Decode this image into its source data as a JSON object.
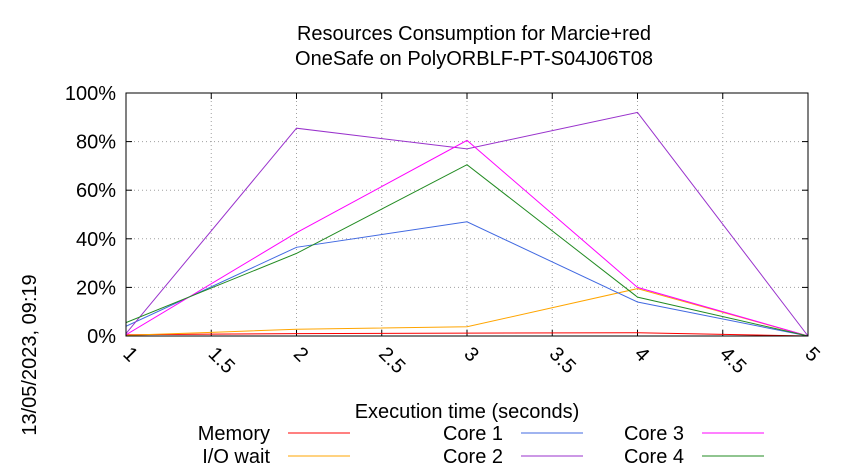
{
  "chart_data": {
    "type": "line",
    "title_line1": "Resources Consumption for Marcie+red",
    "title_line2": "OneSafe on PolyORBLF-PT-S04J06T08",
    "xlabel": "Execution time (seconds)",
    "ylabel": "",
    "side_label": "13/05/2023, 09:19",
    "xlim": [
      1,
      5
    ],
    "ylim": [
      0,
      100
    ],
    "x_ticks": [
      1,
      1.5,
      2,
      2.5,
      3,
      3.5,
      4,
      4.5,
      5
    ],
    "x_tick_labels": [
      "1",
      "1.5",
      "2",
      "2.5",
      "3",
      "3.5",
      "4",
      "4.5",
      "5"
    ],
    "y_ticks": [
      0,
      20,
      40,
      60,
      80,
      100
    ],
    "y_tick_labels": [
      "0%",
      "20%",
      "40%",
      "60%",
      "80%",
      "100%"
    ],
    "grid": true,
    "legend_position": "bottom",
    "series": [
      {
        "name": "Memory",
        "color": "#ff0000",
        "x": [
          1,
          1.5,
          2,
          3,
          4,
          5
        ],
        "y": [
          0.5,
          0.8,
          1,
          1.2,
          1.3,
          0
        ]
      },
      {
        "name": "I/O wait",
        "color": "#ffa500",
        "x": [
          1,
          1.5,
          2,
          3,
          4,
          5
        ],
        "y": [
          0.3,
          1.5,
          2.8,
          3.8,
          19.5,
          0
        ]
      },
      {
        "name": "Core 1",
        "color": "#4169e1",
        "x": [
          1,
          2,
          3,
          4,
          5
        ],
        "y": [
          4,
          36.5,
          47,
          14,
          0
        ]
      },
      {
        "name": "Core 2",
        "color": "#9932cc",
        "x": [
          1,
          2,
          3,
          4,
          5
        ],
        "y": [
          1,
          85.5,
          77,
          92,
          0
        ]
      },
      {
        "name": "Core 3",
        "color": "#ff00ff",
        "x": [
          1,
          2,
          3,
          4,
          5
        ],
        "y": [
          0.5,
          42.5,
          80.5,
          20,
          0
        ]
      },
      {
        "name": "Core 4",
        "color": "#228b22",
        "x": [
          1,
          2,
          3,
          4,
          5
        ],
        "y": [
          5.5,
          34,
          70.5,
          16,
          0
        ]
      }
    ]
  }
}
